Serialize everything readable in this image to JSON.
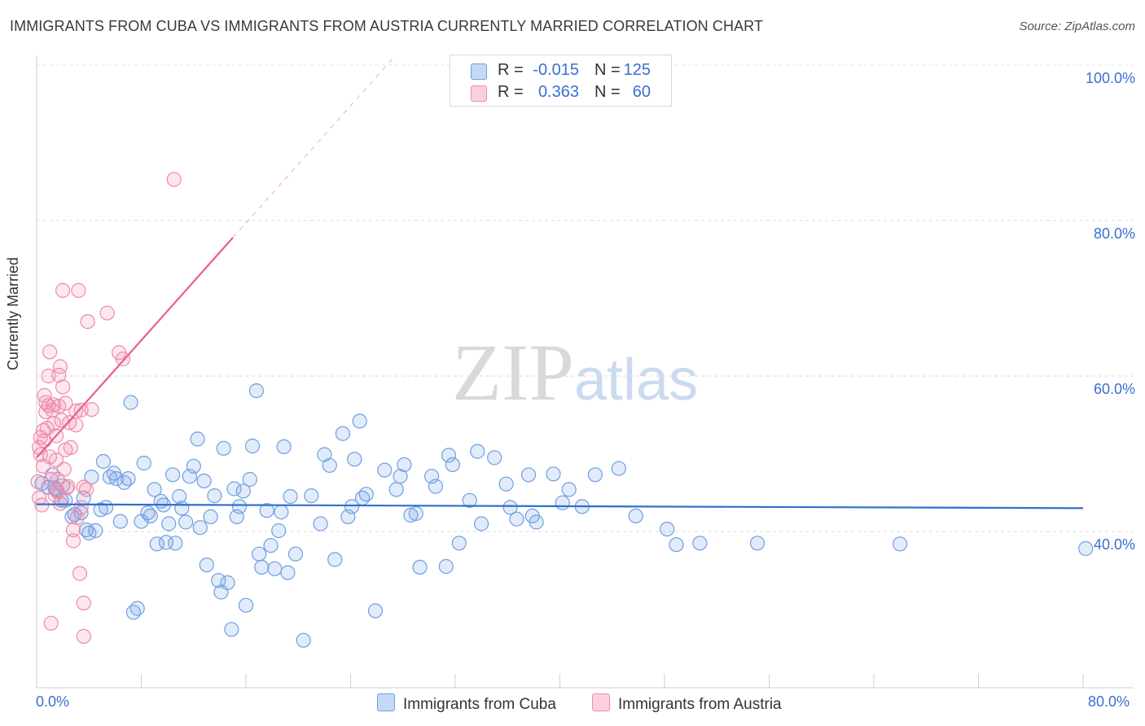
{
  "title": "IMMIGRANTS FROM CUBA VS IMMIGRANTS FROM AUSTRIA CURRENTLY MARRIED CORRELATION CHART",
  "source": "Source: ZipAtlas.com",
  "watermark": {
    "zip": "ZIP",
    "atlas": "atlas"
  },
  "legend": {
    "r_label": "R =",
    "n_label": "N =",
    "cuba": {
      "r": "-0.015",
      "n": "125"
    },
    "austria": {
      "r": "0.363",
      "n": "60"
    }
  },
  "bottom_legend": {
    "cuba": "Immigrants from Cuba",
    "austria": "Immigrants from Austria"
  },
  "chart_data": {
    "type": "scatter",
    "title": "IMMIGRANTS FROM CUBA VS IMMIGRANTS FROM AUSTRIA CURRENTLY MARRIED CORRELATION CHART",
    "xlabel": "",
    "ylabel": "Currently Married",
    "xlim": [
      0,
      80
    ],
    "ylim": [
      20,
      104
    ],
    "x_tick_labels": [
      "0.0%",
      "80.0%"
    ],
    "y_tick_labels": [
      "100.0%",
      "80.0%",
      "60.0%",
      "40.0%"
    ],
    "y_ticks": [
      100,
      80,
      60,
      40
    ],
    "colors": {
      "cuba": "#6f9fe0",
      "austria": "#f08aaa",
      "cuba_line": "#2f6fcf",
      "austria_line": "#e8608c"
    },
    "series": [
      {
        "name": "Immigrants from Cuba",
        "trend": {
          "x0": 0,
          "y0": 43.5,
          "x1": 80,
          "y1": 43.0
        },
        "points": [
          [
            0.4,
            46.2
          ],
          [
            0.9,
            45.7
          ],
          [
            1.2,
            47.3
          ],
          [
            1.4,
            45.6
          ],
          [
            1.5,
            45.4
          ],
          [
            1.9,
            44.0
          ],
          [
            2.0,
            45.9
          ],
          [
            2.2,
            44.0
          ],
          [
            2.7,
            41.9
          ],
          [
            2.9,
            42.2
          ],
          [
            3.4,
            42.4
          ],
          [
            3.6,
            44.3
          ],
          [
            3.8,
            40.2
          ],
          [
            4.0,
            39.8
          ],
          [
            4.2,
            47.0
          ],
          [
            4.5,
            40.1
          ],
          [
            4.9,
            42.8
          ],
          [
            5.1,
            49.0
          ],
          [
            5.3,
            43.1
          ],
          [
            5.6,
            47.0
          ],
          [
            5.9,
            47.5
          ],
          [
            6.1,
            46.8
          ],
          [
            6.4,
            41.3
          ],
          [
            6.7,
            46.3
          ],
          [
            7.0,
            46.8
          ],
          [
            7.2,
            56.6
          ],
          [
            7.4,
            29.6
          ],
          [
            7.7,
            30.1
          ],
          [
            8.0,
            41.3
          ],
          [
            8.2,
            48.8
          ],
          [
            8.5,
            42.4
          ],
          [
            8.7,
            42.0
          ],
          [
            9.0,
            45.4
          ],
          [
            9.2,
            38.4
          ],
          [
            9.5,
            43.9
          ],
          [
            9.7,
            43.4
          ],
          [
            9.9,
            38.6
          ],
          [
            10.1,
            41.0
          ],
          [
            10.4,
            47.3
          ],
          [
            10.6,
            38.5
          ],
          [
            10.9,
            44.5
          ],
          [
            11.1,
            43.0
          ],
          [
            11.4,
            41.2
          ],
          [
            11.7,
            47.1
          ],
          [
            12.0,
            48.4
          ],
          [
            12.3,
            51.9
          ],
          [
            12.5,
            40.5
          ],
          [
            12.8,
            46.5
          ],
          [
            13.0,
            35.7
          ],
          [
            13.3,
            41.9
          ],
          [
            13.6,
            44.6
          ],
          [
            13.9,
            33.7
          ],
          [
            14.1,
            32.2
          ],
          [
            14.3,
            50.7
          ],
          [
            14.6,
            33.4
          ],
          [
            14.9,
            27.4
          ],
          [
            15.1,
            45.5
          ],
          [
            15.3,
            41.9
          ],
          [
            15.5,
            43.2
          ],
          [
            15.8,
            45.2
          ],
          [
            16.0,
            30.5
          ],
          [
            16.3,
            46.7
          ],
          [
            16.5,
            51.0
          ],
          [
            16.8,
            58.1
          ],
          [
            17.0,
            37.1
          ],
          [
            17.2,
            35.4
          ],
          [
            17.6,
            42.7
          ],
          [
            17.9,
            38.2
          ],
          [
            18.2,
            35.2
          ],
          [
            18.5,
            40.1
          ],
          [
            18.7,
            42.5
          ],
          [
            18.9,
            50.9
          ],
          [
            19.2,
            34.7
          ],
          [
            19.4,
            44.5
          ],
          [
            19.8,
            37.1
          ],
          [
            20.4,
            26.0
          ],
          [
            21.0,
            44.6
          ],
          [
            21.7,
            41.0
          ],
          [
            22.0,
            49.9
          ],
          [
            22.4,
            48.5
          ],
          [
            22.8,
            36.4
          ],
          [
            23.4,
            52.6
          ],
          [
            23.8,
            41.9
          ],
          [
            24.1,
            43.2
          ],
          [
            24.3,
            49.3
          ],
          [
            24.7,
            54.2
          ],
          [
            24.9,
            44.3
          ],
          [
            25.2,
            44.8
          ],
          [
            25.9,
            29.8
          ],
          [
            26.6,
            47.9
          ],
          [
            27.5,
            45.4
          ],
          [
            27.8,
            47.1
          ],
          [
            28.1,
            48.6
          ],
          [
            28.6,
            42.1
          ],
          [
            29.0,
            42.3
          ],
          [
            29.3,
            35.4
          ],
          [
            30.2,
            47.1
          ],
          [
            30.5,
            45.8
          ],
          [
            31.3,
            35.5
          ],
          [
            31.5,
            49.8
          ],
          [
            31.8,
            48.6
          ],
          [
            32.3,
            38.5
          ],
          [
            33.1,
            44.0
          ],
          [
            33.7,
            50.3
          ],
          [
            34.0,
            41.0
          ],
          [
            35.0,
            49.5
          ],
          [
            35.9,
            46.1
          ],
          [
            36.2,
            43.1
          ],
          [
            36.7,
            41.6
          ],
          [
            37.6,
            47.3
          ],
          [
            37.9,
            42.0
          ],
          [
            38.2,
            41.2
          ],
          [
            39.5,
            47.4
          ],
          [
            40.2,
            43.7
          ],
          [
            40.7,
            45.4
          ],
          [
            41.7,
            43.2
          ],
          [
            42.7,
            47.3
          ],
          [
            44.5,
            48.1
          ],
          [
            45.8,
            42.0
          ],
          [
            48.2,
            40.3
          ],
          [
            48.9,
            38.3
          ],
          [
            50.7,
            38.5
          ],
          [
            55.1,
            38.5
          ],
          [
            66.0,
            38.4
          ],
          [
            80.2,
            37.8
          ]
        ]
      },
      {
        "name": "Immigrants from Austria",
        "trend": {
          "x0": 0,
          "y0": 49.5,
          "x1": 15,
          "y1": 77.8
        },
        "points": [
          [
            0.1,
            46.4
          ],
          [
            0.2,
            44.3
          ],
          [
            0.2,
            50.8
          ],
          [
            0.3,
            49.9
          ],
          [
            0.3,
            52.1
          ],
          [
            0.4,
            43.4
          ],
          [
            0.5,
            48.4
          ],
          [
            0.5,
            53.0
          ],
          [
            0.6,
            51.7
          ],
          [
            0.7,
            55.4
          ],
          [
            0.7,
            56.6
          ],
          [
            0.8,
            53.3
          ],
          [
            0.9,
            60.0
          ],
          [
            0.9,
            56.2
          ],
          [
            1.0,
            49.6
          ],
          [
            1.0,
            63.1
          ],
          [
            1.1,
            46.7
          ],
          [
            1.2,
            55.6
          ],
          [
            1.3,
            56.3
          ],
          [
            1.3,
            53.9
          ],
          [
            1.4,
            44.7
          ],
          [
            1.5,
            52.3
          ],
          [
            1.5,
            49.2
          ],
          [
            1.6,
            45.1
          ],
          [
            1.6,
            46.7
          ],
          [
            1.7,
            56.1
          ],
          [
            1.7,
            60.1
          ],
          [
            1.8,
            43.6
          ],
          [
            1.8,
            61.2
          ],
          [
            1.9,
            54.3
          ],
          [
            2.0,
            58.6
          ],
          [
            2.0,
            71.0
          ],
          [
            2.1,
            48.0
          ],
          [
            2.2,
            56.5
          ],
          [
            2.2,
            50.5
          ],
          [
            2.3,
            45.6
          ],
          [
            2.4,
            45.8
          ],
          [
            2.5,
            54.0
          ],
          [
            2.6,
            50.8
          ],
          [
            2.8,
            38.8
          ],
          [
            2.8,
            40.2
          ],
          [
            3.0,
            53.7
          ],
          [
            3.0,
            55.5
          ],
          [
            3.1,
            41.8
          ],
          [
            3.2,
            71.0
          ],
          [
            3.3,
            34.6
          ],
          [
            3.4,
            55.6
          ],
          [
            3.4,
            43.1
          ],
          [
            3.6,
            45.7
          ],
          [
            3.6,
            30.8
          ],
          [
            3.6,
            26.5
          ],
          [
            3.8,
            45.4
          ],
          [
            3.9,
            67.0
          ],
          [
            4.2,
            55.7
          ],
          [
            5.4,
            68.1
          ],
          [
            6.3,
            63.0
          ],
          [
            6.6,
            62.2
          ],
          [
            10.5,
            85.3
          ],
          [
            0.6,
            57.5
          ],
          [
            1.1,
            28.2
          ]
        ]
      }
    ]
  }
}
